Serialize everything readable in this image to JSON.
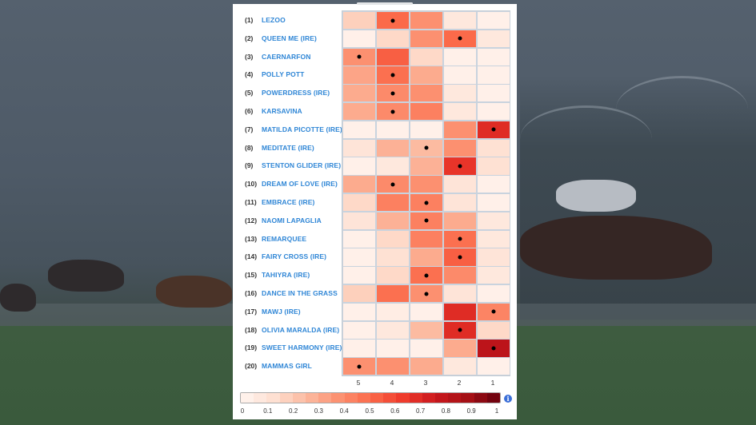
{
  "page": {
    "background_scene": "horse-racing-grandstand-photo"
  },
  "chart_data": {
    "type": "heatmap",
    "title": "",
    "xlabel": "",
    "ylabel": "",
    "x_categories": [
      "5",
      "4",
      "3",
      "2",
      "1"
    ],
    "rows": [
      {
        "num": "(1)",
        "name": "LEZOO",
        "values": [
          0.18,
          0.5,
          0.38,
          0.08,
          0.03
        ],
        "marker": 1
      },
      {
        "num": "(2)",
        "name": "QUEEN ME (IRE)",
        "values": [
          0.03,
          0.15,
          0.38,
          0.5,
          0.08
        ],
        "marker": 3
      },
      {
        "num": "(3)",
        "name": "CAERNARFON",
        "values": [
          0.38,
          0.53,
          0.15,
          0.03,
          0.03
        ],
        "marker": 0
      },
      {
        "num": "(4)",
        "name": "POLLY POTT",
        "values": [
          0.32,
          0.48,
          0.3,
          0.03,
          0.03
        ],
        "marker": 1
      },
      {
        "num": "(5)",
        "name": "POWERDRESS (IRE)",
        "values": [
          0.3,
          0.4,
          0.38,
          0.08,
          0.03
        ],
        "marker": 1
      },
      {
        "num": "(6)",
        "name": "KARSAVINA",
        "values": [
          0.3,
          0.4,
          0.43,
          0.08,
          0.03
        ],
        "marker": 1
      },
      {
        "num": "(7)",
        "name": "MATILDA PICOTTE (IRE)",
        "values": [
          0.03,
          0.03,
          0.03,
          0.38,
          0.68
        ],
        "marker": 4
      },
      {
        "num": "(8)",
        "name": "MEDITATE (IRE)",
        "values": [
          0.1,
          0.28,
          0.25,
          0.38,
          0.12
        ],
        "marker": 2
      },
      {
        "num": "(9)",
        "name": "STENTON GLIDER (IRE)",
        "values": [
          0.03,
          0.08,
          0.28,
          0.65,
          0.12
        ],
        "marker": 3
      },
      {
        "num": "(10)",
        "name": "DREAM OF LOVE (IRE)",
        "values": [
          0.3,
          0.4,
          0.38,
          0.1,
          0.03
        ],
        "marker": 1
      },
      {
        "num": "(11)",
        "name": "EMBRACE (IRE)",
        "values": [
          0.15,
          0.43,
          0.43,
          0.1,
          0.03
        ],
        "marker": 2
      },
      {
        "num": "(12)",
        "name": "NAOMI LAPAGLIA",
        "values": [
          0.1,
          0.28,
          0.43,
          0.3,
          0.08
        ],
        "marker": 2
      },
      {
        "num": "(13)",
        "name": "REMARQUEE",
        "values": [
          0.03,
          0.15,
          0.43,
          0.48,
          0.08
        ],
        "marker": 3
      },
      {
        "num": "(14)",
        "name": "FAIRY CROSS (IRE)",
        "values": [
          0.03,
          0.12,
          0.3,
          0.53,
          0.1
        ],
        "marker": 3
      },
      {
        "num": "(15)",
        "name": "TAHIYRA (IRE)",
        "values": [
          0.03,
          0.15,
          0.48,
          0.4,
          0.08
        ],
        "marker": 2
      },
      {
        "num": "(16)",
        "name": "DANCE IN THE GRASS",
        "values": [
          0.18,
          0.48,
          0.38,
          0.1,
          0.03
        ],
        "marker": 2
      },
      {
        "num": "(17)",
        "name": "MAWJ (IRE)",
        "values": [
          0.03,
          0.05,
          0.03,
          0.68,
          0.42
        ],
        "marker": 4
      },
      {
        "num": "(18)",
        "name": "OLIVIA MARALDA (IRE)",
        "values": [
          0.03,
          0.08,
          0.25,
          0.68,
          0.15
        ],
        "marker": 3
      },
      {
        "num": "(19)",
        "name": "SWEET HARMONY (IRE)",
        "values": [
          0.03,
          0.03,
          0.03,
          0.3,
          0.8
        ],
        "marker": 4
      },
      {
        "num": "(20)",
        "name": "MAMMAS GIRL",
        "values": [
          0.38,
          0.38,
          0.3,
          0.08,
          0.03
        ],
        "marker": 0
      }
    ],
    "color_scale": {
      "name": "Reds",
      "min": 0,
      "max": 1,
      "stops": [
        "#fff5f0",
        "#fee0d2",
        "#fcbba1",
        "#fc9272",
        "#fb6a4a",
        "#ef3b2c",
        "#cb181d",
        "#a50f15",
        "#67000d"
      ]
    },
    "legend": {
      "position": "bottom",
      "ticks": [
        "0",
        "0.1",
        "0.2",
        "0.3",
        "0.4",
        "0.5",
        "0.6",
        "0.7",
        "0.8",
        "0.9",
        "1"
      ]
    },
    "marker_meaning": "black dot marks highlighted cell per row"
  },
  "legend": {
    "info_icon": "info-icon",
    "info_glyph": "i"
  }
}
